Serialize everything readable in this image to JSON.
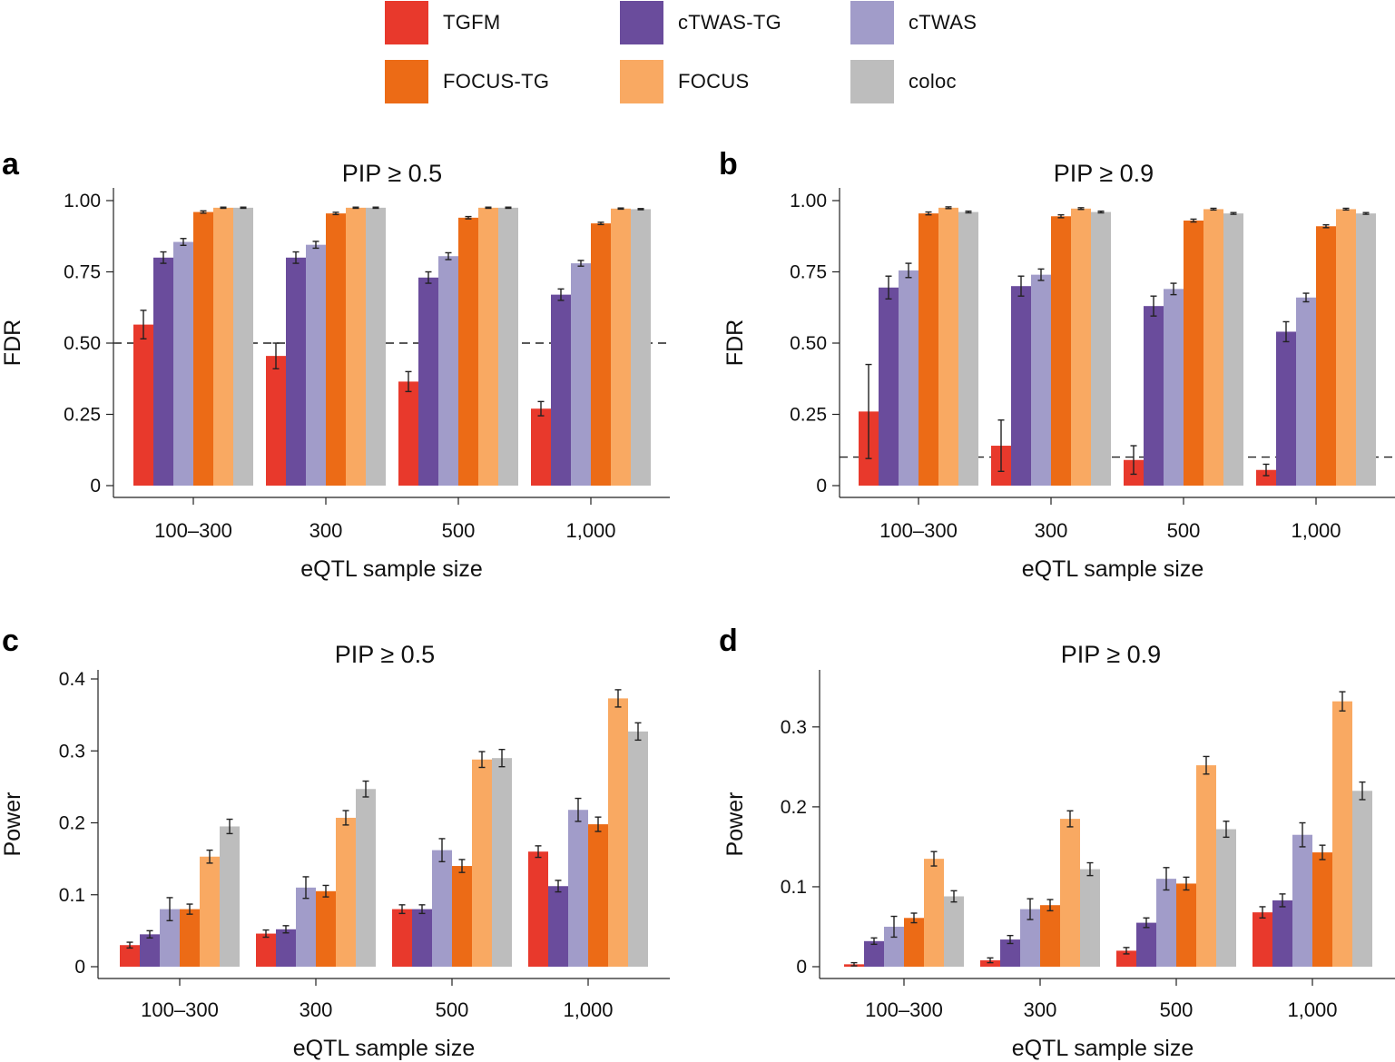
{
  "legend": [
    {
      "name": "TGFM",
      "color": "#e8392c"
    },
    {
      "name": "cTWAS-TG",
      "color": "#6a4c9c"
    },
    {
      "name": "cTWAS",
      "color": "#a19cc9"
    },
    {
      "name": "FOCUS-TG",
      "color": "#ec6b16"
    },
    {
      "name": "FOCUS",
      "color": "#f9a962"
    },
    {
      "name": "coloc",
      "color": "#bdbdbd"
    }
  ],
  "chart_data": [
    {
      "panel": "a",
      "type": "bar",
      "title": "PIP ≥ 0.5",
      "xlabel": "eQTL sample size",
      "ylabel": "FDR",
      "ylim": [
        0,
        1.0
      ],
      "yticks": [
        0,
        0.25,
        0.5,
        0.75,
        1.0
      ],
      "ytick_labels": [
        "0",
        "0.25",
        "0.50",
        "0.75",
        "1.00"
      ],
      "reference_line": 0.5,
      "categories": [
        "100–300",
        "300",
        "500",
        "1,000"
      ],
      "series": [
        {
          "name": "TGFM",
          "values": [
            0.565,
            0.455,
            0.365,
            0.27
          ],
          "errors": [
            0.05,
            0.045,
            0.035,
            0.025
          ]
        },
        {
          "name": "cTWAS-TG",
          "values": [
            0.8,
            0.8,
            0.73,
            0.67
          ],
          "errors": [
            0.02,
            0.02,
            0.02,
            0.02
          ]
        },
        {
          "name": "cTWAS",
          "values": [
            0.855,
            0.845,
            0.805,
            0.78
          ],
          "errors": [
            0.012,
            0.012,
            0.012,
            0.01
          ]
        },
        {
          "name": "FOCUS-TG",
          "values": [
            0.96,
            0.955,
            0.94,
            0.92
          ],
          "errors": [
            0.004,
            0.004,
            0.004,
            0.004
          ]
        },
        {
          "name": "FOCUS",
          "values": [
            0.975,
            0.975,
            0.975,
            0.972
          ],
          "errors": [
            0.002,
            0.002,
            0.002,
            0.002
          ]
        },
        {
          "name": "coloc",
          "values": [
            0.975,
            0.975,
            0.975,
            0.97
          ],
          "errors": [
            0.002,
            0.002,
            0.002,
            0.002
          ]
        }
      ]
    },
    {
      "panel": "b",
      "type": "bar",
      "title": "PIP ≥ 0.9",
      "xlabel": "eQTL sample size",
      "ylabel": "FDR",
      "ylim": [
        0,
        1.0
      ],
      "yticks": [
        0,
        0.25,
        0.5,
        0.75,
        1.0
      ],
      "ytick_labels": [
        "0",
        "0.25",
        "0.50",
        "0.75",
        "1.00"
      ],
      "reference_line": 0.1,
      "categories": [
        "100–300",
        "300",
        "500",
        "1,000"
      ],
      "series": [
        {
          "name": "TGFM",
          "values": [
            0.26,
            0.14,
            0.09,
            0.055
          ],
          "errors": [
            0.165,
            0.09,
            0.05,
            0.02
          ]
        },
        {
          "name": "cTWAS-TG",
          "values": [
            0.695,
            0.7,
            0.63,
            0.54
          ],
          "errors": [
            0.04,
            0.035,
            0.035,
            0.035
          ]
        },
        {
          "name": "cTWAS",
          "values": [
            0.755,
            0.74,
            0.69,
            0.66
          ],
          "errors": [
            0.025,
            0.02,
            0.02,
            0.015
          ]
        },
        {
          "name": "FOCUS-TG",
          "values": [
            0.955,
            0.945,
            0.93,
            0.91
          ],
          "errors": [
            0.005,
            0.005,
            0.005,
            0.005
          ]
        },
        {
          "name": "FOCUS",
          "values": [
            0.975,
            0.972,
            0.97,
            0.97
          ],
          "errors": [
            0.003,
            0.003,
            0.003,
            0.003
          ]
        },
        {
          "name": "coloc",
          "values": [
            0.96,
            0.96,
            0.955,
            0.955
          ],
          "errors": [
            0.003,
            0.003,
            0.003,
            0.003
          ]
        }
      ]
    },
    {
      "panel": "c",
      "type": "bar",
      "title": "PIP ≥ 0.5",
      "xlabel": "eQTL sample size",
      "ylabel": "Power",
      "ylim": [
        0,
        0.4
      ],
      "yticks": [
        0,
        0.1,
        0.2,
        0.3,
        0.4
      ],
      "ytick_labels": [
        "0",
        "0.1",
        "0.2",
        "0.3",
        "0.4"
      ],
      "categories": [
        "100–300",
        "300",
        "500",
        "1,000"
      ],
      "series": [
        {
          "name": "TGFM",
          "values": [
            0.03,
            0.046,
            0.08,
            0.16
          ],
          "errors": [
            0.004,
            0.005,
            0.006,
            0.008
          ]
        },
        {
          "name": "cTWAS-TG",
          "values": [
            0.045,
            0.052,
            0.08,
            0.112
          ],
          "errors": [
            0.005,
            0.005,
            0.006,
            0.008
          ]
        },
        {
          "name": "cTWAS",
          "values": [
            0.08,
            0.11,
            0.162,
            0.218
          ],
          "errors": [
            0.016,
            0.015,
            0.016,
            0.016
          ]
        },
        {
          "name": "FOCUS-TG",
          "values": [
            0.08,
            0.105,
            0.14,
            0.198
          ],
          "errors": [
            0.007,
            0.008,
            0.009,
            0.01
          ]
        },
        {
          "name": "FOCUS",
          "values": [
            0.153,
            0.207,
            0.288,
            0.373
          ],
          "errors": [
            0.009,
            0.01,
            0.011,
            0.012
          ]
        },
        {
          "name": "coloc",
          "values": [
            0.195,
            0.247,
            0.29,
            0.327
          ],
          "errors": [
            0.01,
            0.011,
            0.012,
            0.012
          ]
        }
      ]
    },
    {
      "panel": "d",
      "type": "bar",
      "title": "PIP ≥ 0.9",
      "xlabel": "eQTL sample size",
      "ylabel": "Power",
      "ylim": [
        0,
        0.36
      ],
      "yticks": [
        0,
        0.1,
        0.2,
        0.3
      ],
      "ytick_labels": [
        "0",
        "0.1",
        "0.2",
        "0.3"
      ],
      "categories": [
        "100–300",
        "300",
        "500",
        "1,000"
      ],
      "series": [
        {
          "name": "TGFM",
          "values": [
            0.003,
            0.008,
            0.02,
            0.068
          ],
          "errors": [
            0.002,
            0.003,
            0.004,
            0.007
          ]
        },
        {
          "name": "cTWAS-TG",
          "values": [
            0.032,
            0.034,
            0.055,
            0.083
          ],
          "errors": [
            0.004,
            0.005,
            0.006,
            0.008
          ]
        },
        {
          "name": "cTWAS",
          "values": [
            0.05,
            0.072,
            0.11,
            0.165
          ],
          "errors": [
            0.013,
            0.013,
            0.014,
            0.015
          ]
        },
        {
          "name": "FOCUS-TG",
          "values": [
            0.061,
            0.077,
            0.104,
            0.143
          ],
          "errors": [
            0.006,
            0.007,
            0.008,
            0.009
          ]
        },
        {
          "name": "FOCUS",
          "values": [
            0.135,
            0.185,
            0.252,
            0.332
          ],
          "errors": [
            0.009,
            0.01,
            0.011,
            0.012
          ]
        },
        {
          "name": "coloc",
          "values": [
            0.088,
            0.122,
            0.172,
            0.22
          ],
          "errors": [
            0.007,
            0.008,
            0.01,
            0.011
          ]
        }
      ]
    }
  ]
}
